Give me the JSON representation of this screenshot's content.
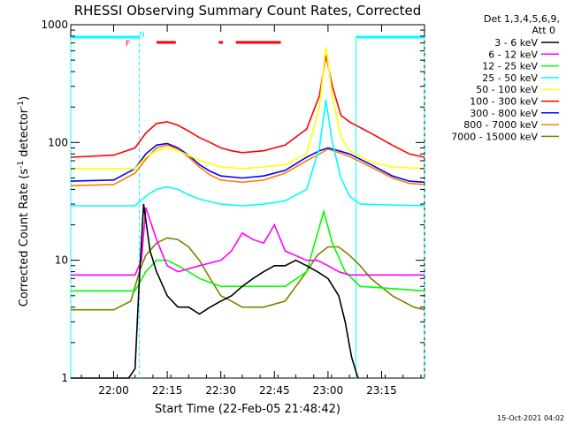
{
  "chart_data": {
    "type": "line",
    "title": "RHESSI Observing Summary Count Rates, Corrected",
    "xlabel": "Start Time (22-Feb-05 21:48:42)",
    "ylabel_main": "Corrected Count Rate (s",
    "ylabel_sup1": "-1",
    "ylabel_mid": " detector",
    "ylabel_sup2": "-1",
    "ylabel_end": ")",
    "yscale": "log",
    "ylim": [
      1,
      1000
    ],
    "xlim_minutes": [
      21.8,
      23.45
    ],
    "x_ticks": [
      {
        "label": "22:00",
        "t": 22.0
      },
      {
        "label": "22:15",
        "t": 22.25
      },
      {
        "label": "22:30",
        "t": 22.5
      },
      {
        "label": "22:45",
        "t": 22.75
      },
      {
        "label": "23:00",
        "t": 23.0
      },
      {
        "label": "23:15",
        "t": 23.25
      }
    ],
    "y_ticks": [
      {
        "label": "1",
        "v": 1
      },
      {
        "label": "10",
        "v": 10
      },
      {
        "label": "100",
        "v": 100
      },
      {
        "label": "1000",
        "v": 1000
      }
    ],
    "legend_header": [
      "Det 1,3,4,5,6,9,",
      "Att 0"
    ],
    "flag_labels": {
      "f": "F",
      "n": "N"
    },
    "flags": {
      "night": [
        [
          21.8,
          22.12
        ],
        [
          23.13,
          23.45
        ]
      ],
      "flare": [
        [
          22.2,
          22.29
        ],
        [
          22.49,
          22.51
        ],
        [
          22.57,
          22.78
        ]
      ]
    },
    "series": [
      {
        "name": "3 - 6 keV",
        "color": "#000000",
        "points": [
          [
            21.8,
            1
          ],
          [
            22.07,
            1
          ],
          [
            22.1,
            1.2
          ],
          [
            22.12,
            7
          ],
          [
            22.14,
            30
          ],
          [
            22.17,
            12
          ],
          [
            22.2,
            8
          ],
          [
            22.25,
            5
          ],
          [
            22.3,
            4
          ],
          [
            22.35,
            4
          ],
          [
            22.4,
            3.5
          ],
          [
            22.45,
            4
          ],
          [
            22.5,
            4.5
          ],
          [
            22.55,
            5
          ],
          [
            22.6,
            6
          ],
          [
            22.65,
            7
          ],
          [
            22.7,
            8
          ],
          [
            22.75,
            9
          ],
          [
            22.8,
            9
          ],
          [
            22.85,
            10
          ],
          [
            22.9,
            9
          ],
          [
            22.95,
            8
          ],
          [
            23.0,
            7
          ],
          [
            23.05,
            5
          ],
          [
            23.08,
            3
          ],
          [
            23.11,
            1.5
          ],
          [
            23.14,
            1
          ]
        ]
      },
      {
        "name": "6 - 12 keV",
        "color": "#ff00ff",
        "points": [
          [
            21.8,
            7.5
          ],
          [
            22.1,
            7.5
          ],
          [
            22.13,
            10
          ],
          [
            22.15,
            28
          ],
          [
            22.2,
            15
          ],
          [
            22.25,
            9
          ],
          [
            22.3,
            8
          ],
          [
            22.4,
            9
          ],
          [
            22.5,
            10
          ],
          [
            22.55,
            12
          ],
          [
            22.6,
            17
          ],
          [
            22.65,
            15
          ],
          [
            22.7,
            14
          ],
          [
            22.75,
            20
          ],
          [
            22.8,
            12
          ],
          [
            22.9,
            10
          ],
          [
            22.95,
            10
          ],
          [
            23.0,
            9
          ],
          [
            23.05,
            8
          ],
          [
            23.1,
            7.5
          ],
          [
            23.45,
            7.5
          ]
        ]
      },
      {
        "name": "12 - 25 keV",
        "color": "#00ff00",
        "points": [
          [
            21.8,
            5.5
          ],
          [
            22.1,
            5.5
          ],
          [
            22.15,
            8
          ],
          [
            22.2,
            10
          ],
          [
            22.25,
            10
          ],
          [
            22.3,
            9
          ],
          [
            22.35,
            8
          ],
          [
            22.4,
            7
          ],
          [
            22.5,
            6
          ],
          [
            22.6,
            6
          ],
          [
            22.7,
            6
          ],
          [
            22.8,
            6
          ],
          [
            22.9,
            8
          ],
          [
            22.98,
            26
          ],
          [
            23.02,
            14
          ],
          [
            23.08,
            8
          ],
          [
            23.15,
            6
          ],
          [
            23.45,
            5.5
          ]
        ]
      },
      {
        "name": "25 - 50 keV",
        "color": "#00ffff",
        "points": [
          [
            21.8,
            29
          ],
          [
            22.1,
            29
          ],
          [
            22.15,
            35
          ],
          [
            22.2,
            40
          ],
          [
            22.25,
            42
          ],
          [
            22.3,
            40
          ],
          [
            22.35,
            36
          ],
          [
            22.4,
            33
          ],
          [
            22.5,
            30
          ],
          [
            22.6,
            29
          ],
          [
            22.7,
            30
          ],
          [
            22.8,
            32
          ],
          [
            22.9,
            40
          ],
          [
            22.96,
            90
          ],
          [
            22.99,
            230
          ],
          [
            23.02,
            100
          ],
          [
            23.06,
            50
          ],
          [
            23.1,
            35
          ],
          [
            23.15,
            30
          ],
          [
            23.45,
            29
          ]
        ]
      },
      {
        "name": "50 - 100 keV",
        "color": "#ffff00",
        "points": [
          [
            21.8,
            60
          ],
          [
            22.1,
            60
          ],
          [
            22.15,
            75
          ],
          [
            22.2,
            85
          ],
          [
            22.25,
            90
          ],
          [
            22.3,
            85
          ],
          [
            22.35,
            78
          ],
          [
            22.4,
            70
          ],
          [
            22.5,
            62
          ],
          [
            22.6,
            60
          ],
          [
            22.7,
            62
          ],
          [
            22.8,
            65
          ],
          [
            22.9,
            80
          ],
          [
            22.96,
            200
          ],
          [
            22.99,
            650
          ],
          [
            23.02,
            250
          ],
          [
            23.06,
            110
          ],
          [
            23.1,
            85
          ],
          [
            23.2,
            68
          ],
          [
            23.3,
            62
          ],
          [
            23.45,
            60
          ]
        ]
      },
      {
        "name": "100 - 300 keV",
        "color": "#ff0000",
        "points": [
          [
            21.8,
            75
          ],
          [
            22.0,
            78
          ],
          [
            22.1,
            90
          ],
          [
            22.15,
            120
          ],
          [
            22.2,
            145
          ],
          [
            22.25,
            150
          ],
          [
            22.3,
            140
          ],
          [
            22.35,
            125
          ],
          [
            22.4,
            110
          ],
          [
            22.45,
            100
          ],
          [
            22.5,
            90
          ],
          [
            22.55,
            85
          ],
          [
            22.6,
            82
          ],
          [
            22.7,
            85
          ],
          [
            22.8,
            95
          ],
          [
            22.9,
            130
          ],
          [
            22.96,
            250
          ],
          [
            22.99,
            550
          ],
          [
            23.02,
            300
          ],
          [
            23.06,
            170
          ],
          [
            23.1,
            150
          ],
          [
            23.2,
            120
          ],
          [
            23.3,
            95
          ],
          [
            23.38,
            80
          ],
          [
            23.45,
            75
          ]
        ]
      },
      {
        "name": "300 - 800 keV",
        "color": "#0000ff",
        "points": [
          [
            21.8,
            47
          ],
          [
            22.0,
            48
          ],
          [
            22.1,
            60
          ],
          [
            22.15,
            80
          ],
          [
            22.2,
            95
          ],
          [
            22.25,
            98
          ],
          [
            22.3,
            90
          ],
          [
            22.35,
            78
          ],
          [
            22.4,
            65
          ],
          [
            22.45,
            57
          ],
          [
            22.5,
            52
          ],
          [
            22.6,
            50
          ],
          [
            22.7,
            52
          ],
          [
            22.8,
            58
          ],
          [
            22.9,
            75
          ],
          [
            22.96,
            85
          ],
          [
            23.0,
            90
          ],
          [
            23.05,
            85
          ],
          [
            23.1,
            80
          ],
          [
            23.2,
            65
          ],
          [
            23.3,
            52
          ],
          [
            23.38,
            47
          ],
          [
            23.45,
            46
          ]
        ]
      },
      {
        "name": "800 - 7000 keV",
        "color": "#ff8000",
        "points": [
          [
            21.8,
            43
          ],
          [
            22.0,
            44
          ],
          [
            22.1,
            55
          ],
          [
            22.15,
            72
          ],
          [
            22.2,
            90
          ],
          [
            22.25,
            95
          ],
          [
            22.3,
            88
          ],
          [
            22.35,
            75
          ],
          [
            22.4,
            62
          ],
          [
            22.45,
            53
          ],
          [
            22.5,
            48
          ],
          [
            22.6,
            46
          ],
          [
            22.7,
            48
          ],
          [
            22.8,
            55
          ],
          [
            22.9,
            70
          ],
          [
            22.96,
            80
          ],
          [
            23.0,
            88
          ],
          [
            23.05,
            82
          ],
          [
            23.1,
            76
          ],
          [
            23.2,
            62
          ],
          [
            23.3,
            50
          ],
          [
            23.38,
            45
          ],
          [
            23.45,
            44
          ]
        ]
      },
      {
        "name": "7000 - 15000 keV",
        "color": "#808000",
        "points": [
          [
            21.8,
            3.8
          ],
          [
            22.0,
            3.8
          ],
          [
            22.08,
            4.5
          ],
          [
            22.12,
            8
          ],
          [
            22.15,
            11
          ],
          [
            22.2,
            14
          ],
          [
            22.25,
            15.5
          ],
          [
            22.3,
            15
          ],
          [
            22.35,
            13
          ],
          [
            22.4,
            10
          ],
          [
            22.45,
            7
          ],
          [
            22.5,
            5
          ],
          [
            22.55,
            4.5
          ],
          [
            22.6,
            4
          ],
          [
            22.7,
            4
          ],
          [
            22.8,
            4.5
          ],
          [
            22.9,
            8
          ],
          [
            22.95,
            11
          ],
          [
            23.0,
            13
          ],
          [
            23.05,
            13
          ],
          [
            23.1,
            11
          ],
          [
            23.15,
            9
          ],
          [
            23.2,
            7
          ],
          [
            23.3,
            5
          ],
          [
            23.4,
            4
          ],
          [
            23.45,
            3.8
          ]
        ]
      }
    ],
    "footer_date": "15-Oct-2021 04:02"
  }
}
